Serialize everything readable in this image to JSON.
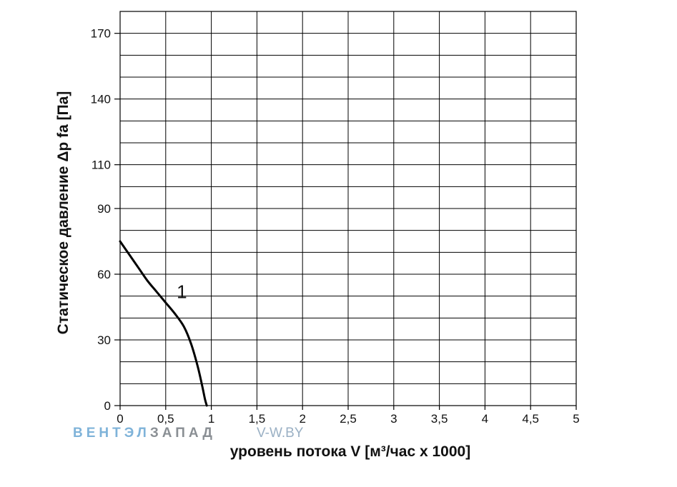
{
  "chart_data": {
    "type": "line",
    "xlabel": "уровень потока  V [м³/час x 1000]",
    "ylabel": "Статическое давление  Δp fa [Па]",
    "xlim": [
      0,
      5
    ],
    "ylim": [
      0,
      180
    ],
    "x_ticks": [
      0,
      0.5,
      1,
      1.5,
      2,
      2.5,
      3,
      3.5,
      4,
      4.5,
      5
    ],
    "x_tick_labels": [
      "0",
      "0,5",
      "1",
      "1,5",
      "2",
      "2,5",
      "3",
      "3,5",
      "4",
      "4,5",
      "5"
    ],
    "y_ticks": [
      0,
      30,
      60,
      90,
      110,
      140,
      170
    ],
    "y_tick_labels": [
      "0",
      "30",
      "60",
      "90",
      "110",
      "140",
      "170"
    ],
    "y_minor_ticks": [
      10,
      20,
      40,
      50,
      70,
      80,
      100,
      120,
      130,
      150,
      160
    ],
    "grid": true,
    "series": [
      {
        "name": "1",
        "color": "#000000",
        "x": [
          0.0,
          0.1,
          0.2,
          0.3,
          0.4,
          0.5,
          0.6,
          0.7,
          0.78,
          0.85,
          0.9,
          0.93,
          0.95
        ],
        "y": [
          75,
          69,
          63,
          57,
          52,
          47,
          42,
          36,
          28,
          18,
          9,
          3,
          0
        ]
      }
    ],
    "watermark": {
      "brand_part1": "ВЕНТЭЛ",
      "brand_part2": "ЗАПАД",
      "site": "V-W.BY",
      "color_part1": "#7fb3d9",
      "color_part2": "#8a8f94",
      "color_site": "#9ab0c4"
    }
  }
}
